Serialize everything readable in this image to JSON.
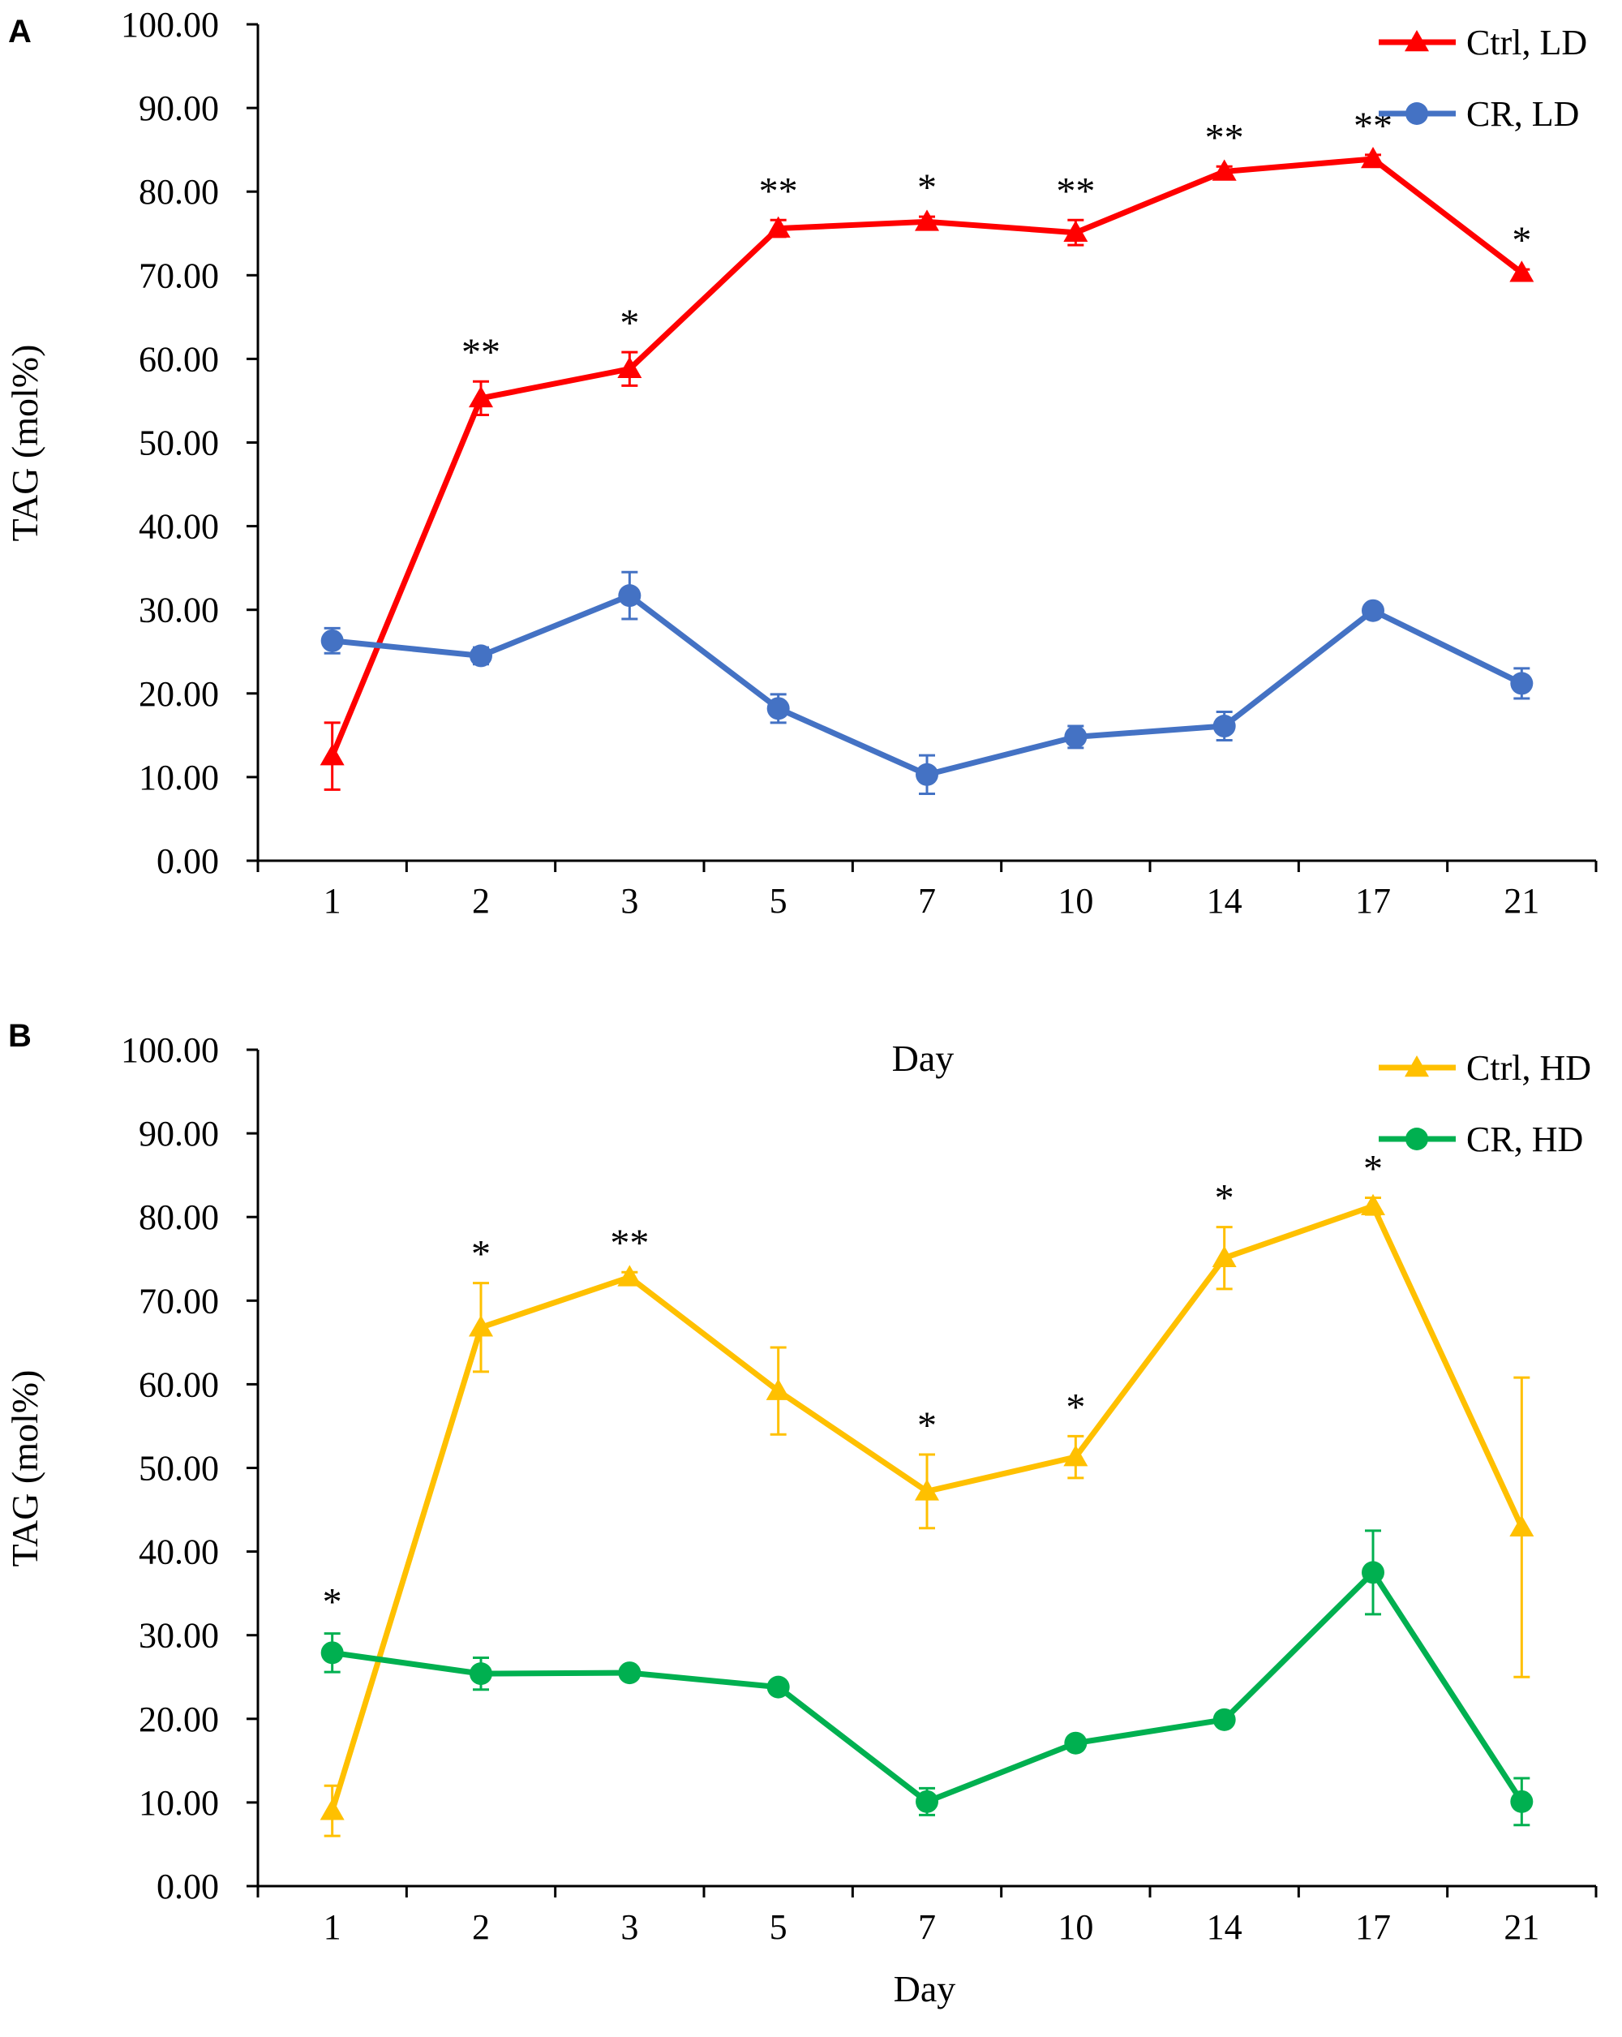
{
  "chart_data": [
    {
      "panel": "A",
      "type": "line",
      "ylabel": "TAG (mol%)",
      "xlabel": "",
      "categories": [
        "1",
        "2",
        "3",
        "5",
        "7",
        "10",
        "14",
        "17",
        "21"
      ],
      "ylim": [
        0,
        100
      ],
      "yticks": [
        "0.00",
        "10.00",
        "20.00",
        "30.00",
        "40.00",
        "50.00",
        "60.00",
        "70.00",
        "80.00",
        "90.00",
        "100.00"
      ],
      "legend_position": "top-right",
      "series": [
        {
          "name": "Ctrl, LD",
          "color": "#ff0000",
          "marker": "triangle",
          "values": [
            12.5,
            55.3,
            58.8,
            75.6,
            76.4,
            75.1,
            82.4,
            83.9,
            70.3
          ],
          "errors": [
            4.0,
            2.0,
            2.0,
            1.0,
            0.6,
            1.5,
            0.6,
            0.5,
            0.4
          ],
          "significance": [
            "",
            "**",
            "*",
            "**",
            "*",
            "**",
            "**",
            "**",
            "*"
          ]
        },
        {
          "name": "CR, LD",
          "color": "#4472c4",
          "marker": "circle",
          "values": [
            26.3,
            24.5,
            31.7,
            18.2,
            10.3,
            14.8,
            16.1,
            29.9,
            21.2
          ],
          "errors": [
            1.5,
            1.0,
            2.8,
            1.7,
            2.3,
            1.3,
            1.7,
            0.4,
            1.8
          ]
        }
      ]
    },
    {
      "panel": "B",
      "type": "line",
      "ylabel": "TAG (mol%)",
      "xlabel": "Day",
      "title": "Day",
      "categories": [
        "1",
        "2",
        "3",
        "5",
        "7",
        "10",
        "14",
        "17",
        "21"
      ],
      "ylim": [
        0,
        100
      ],
      "yticks": [
        "0.00",
        "10.00",
        "20.00",
        "30.00",
        "40.00",
        "50.00",
        "60.00",
        "70.00",
        "80.00",
        "90.00",
        "100.00"
      ],
      "legend_position": "top-right",
      "series": [
        {
          "name": "Ctrl, HD",
          "color": "#ffc000",
          "marker": "triangle",
          "values": [
            9.0,
            66.8,
            72.8,
            59.2,
            47.2,
            51.3,
            75.1,
            81.3,
            42.9
          ],
          "errors": [
            3.0,
            5.3,
            0.6,
            5.2,
            4.4,
            2.5,
            3.7,
            1.0,
            17.9
          ],
          "significance": [
            "*",
            "*",
            "**",
            "",
            "*",
            "*",
            "*",
            "*",
            ""
          ]
        },
        {
          "name": "CR, HD",
          "color": "#00b050",
          "marker": "circle",
          "values": [
            27.9,
            25.4,
            25.5,
            23.8,
            10.1,
            17.1,
            19.9,
            37.5,
            10.1
          ],
          "errors": [
            2.3,
            1.9,
            0.5,
            0.4,
            1.6,
            0.5,
            0.6,
            5.0,
            2.8
          ]
        }
      ]
    }
  ]
}
